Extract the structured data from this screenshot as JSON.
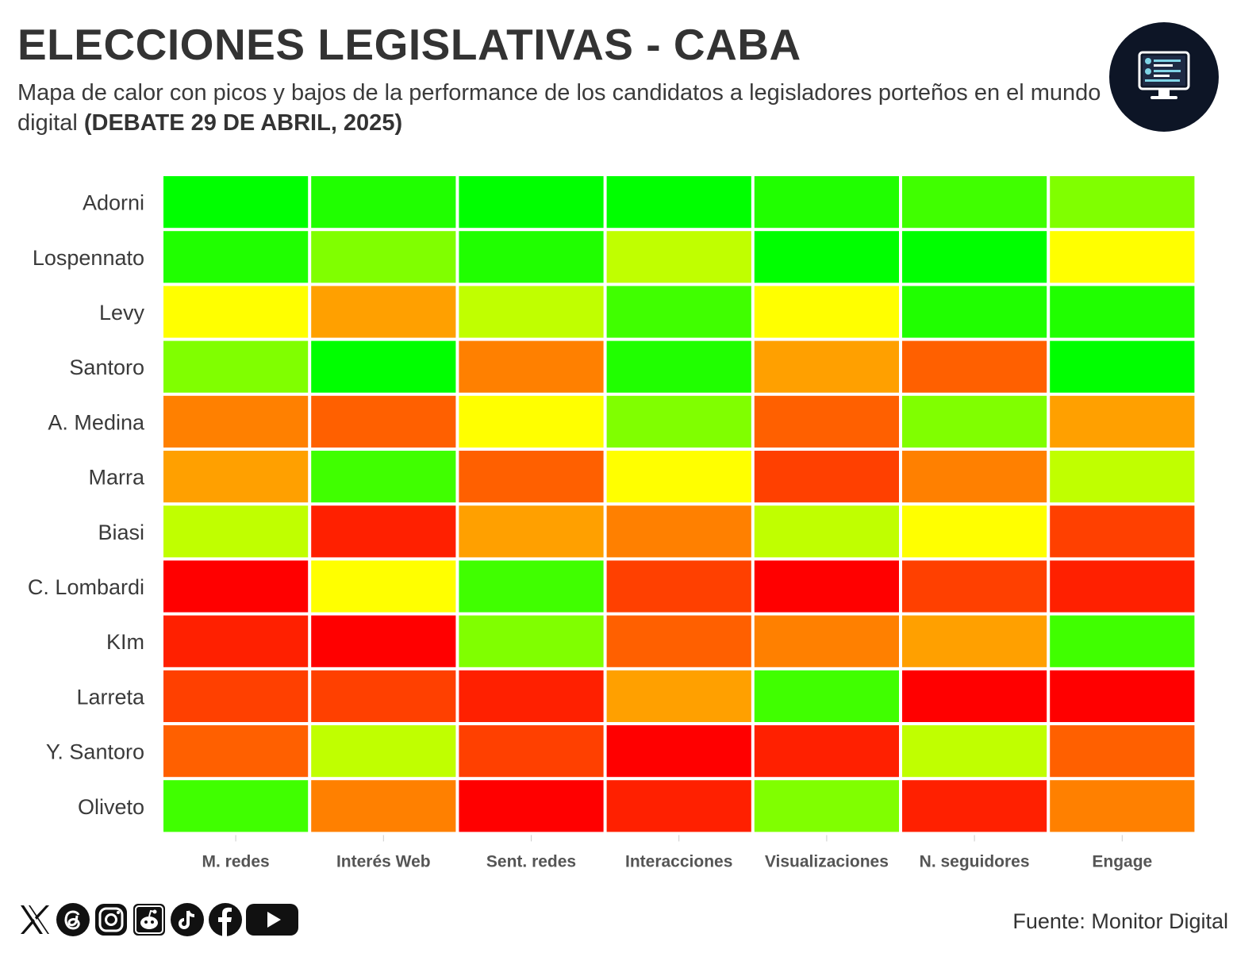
{
  "header": {
    "title": "ELECCIONES LEGISLATIVAS - CABA",
    "subtitle": "Mapa de calor con picos y bajos de la performance de los candidatos a legisladores porteños en el mundo digital",
    "subtitle_bold": "(DEBATE 29 DE ABRIL, 2025)"
  },
  "logo": {
    "icon": "monitor-dashboard-icon"
  },
  "footer": {
    "source": "Fuente: Monitor Digital",
    "socials": [
      "x-icon",
      "threads-icon",
      "instagram-icon",
      "reddit-icon",
      "tiktok-icon",
      "facebook-icon",
      "youtube-icon"
    ]
  },
  "colors": {
    "background": "#ffffff",
    "title": "#333333",
    "scale": [
      "#ff0000",
      "#ff2000",
      "#ff4000",
      "#ff6000",
      "#ff8000",
      "#ffa000",
      "#ffff00",
      "#c0ff00",
      "#80ff00",
      "#40ff00",
      "#20ff00",
      "#00ff00"
    ]
  },
  "chart_data": {
    "type": "heatmap",
    "title": "ELECCIONES LEGISLATIVAS - CABA",
    "x_categories": [
      "M. redes",
      "Interés Web",
      "Sent. redes",
      "Interacciones",
      "Visualizaciones",
      "N. seguidores",
      "Engage"
    ],
    "y_categories": [
      "Adorni",
      "Lospennato",
      "Levy",
      "Santoro",
      "A. Medina",
      "Marra",
      "Biasi",
      "C. Lombardi",
      "KIm",
      "Larreta",
      "Y. Santoro",
      "Oliveto"
    ],
    "value_scale": "0 = low (red) to 11 = high (green), ordinal rank estimated from color",
    "values": [
      [
        11,
        10,
        11,
        11,
        10,
        9,
        8
      ],
      [
        10,
        8,
        10,
        7,
        11,
        11,
        6
      ],
      [
        6,
        5,
        7,
        9,
        6,
        10,
        10
      ],
      [
        8,
        11,
        4,
        10,
        5,
        3,
        11
      ],
      [
        4,
        3,
        6,
        8,
        3,
        8,
        5
      ],
      [
        5,
        9,
        3,
        6,
        2,
        4,
        7
      ],
      [
        7,
        1,
        5,
        4,
        7,
        6,
        2
      ],
      [
        0,
        6,
        9,
        2,
        0,
        2,
        1
      ],
      [
        1,
        0,
        8,
        3,
        4,
        5,
        9
      ],
      [
        2,
        2,
        1,
        5,
        9,
        0,
        0
      ],
      [
        3,
        7,
        2,
        0,
        1,
        7,
        3
      ],
      [
        9,
        4,
        0,
        1,
        8,
        1,
        4
      ]
    ]
  }
}
